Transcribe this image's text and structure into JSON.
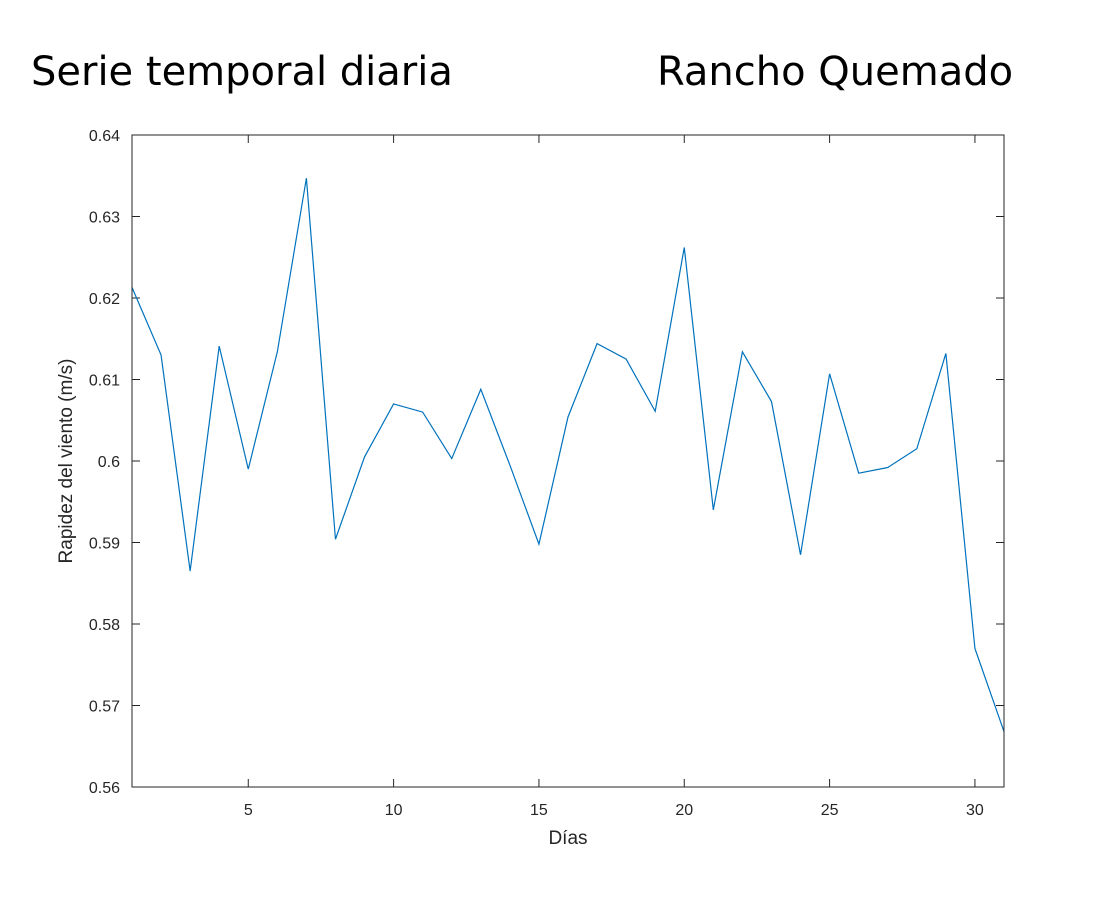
{
  "titles": {
    "left": "Serie temporal diaria",
    "right": "Rancho Quemado"
  },
  "chart_data": {
    "type": "line",
    "xlabel": "Días",
    "ylabel": "Rapidez del viento (m/s)",
    "xlim": [
      1,
      31
    ],
    "ylim": [
      0.56,
      0.64
    ],
    "xticks": [
      5,
      10,
      15,
      20,
      25,
      30
    ],
    "xtick_labels": [
      "5",
      "10",
      "15",
      "20",
      "25",
      "30"
    ],
    "yticks": [
      0.56,
      0.57,
      0.58,
      0.59,
      0.6,
      0.61,
      0.62,
      0.63,
      0.64
    ],
    "ytick_labels": [
      "0.56",
      "0.57",
      "0.58",
      "0.59",
      "0.6",
      "0.61",
      "0.62",
      "0.63",
      "0.64"
    ],
    "grid": false,
    "line_color": "#0072BD",
    "axis_color": "#262626",
    "series": [
      {
        "x": [
          1,
          2,
          3,
          4,
          5,
          6,
          7,
          8,
          9,
          10,
          11,
          12,
          13,
          14,
          15,
          16,
          17,
          18,
          19,
          20,
          21,
          22,
          23,
          24,
          25,
          26,
          27,
          28,
          29,
          30,
          31
        ],
        "values": [
          0.6213,
          0.613,
          0.5865,
          0.6141,
          0.599,
          0.6134,
          0.6347,
          0.5904,
          0.6005,
          0.607,
          0.606,
          0.6003,
          0.6088,
          0.5995,
          0.5898,
          0.6054,
          0.6144,
          0.6125,
          0.6061,
          0.6262,
          0.594,
          0.6134,
          0.6073,
          0.5885,
          0.6107,
          0.5985,
          0.5992,
          0.6015,
          0.6132,
          0.577,
          0.5668
        ]
      }
    ]
  }
}
